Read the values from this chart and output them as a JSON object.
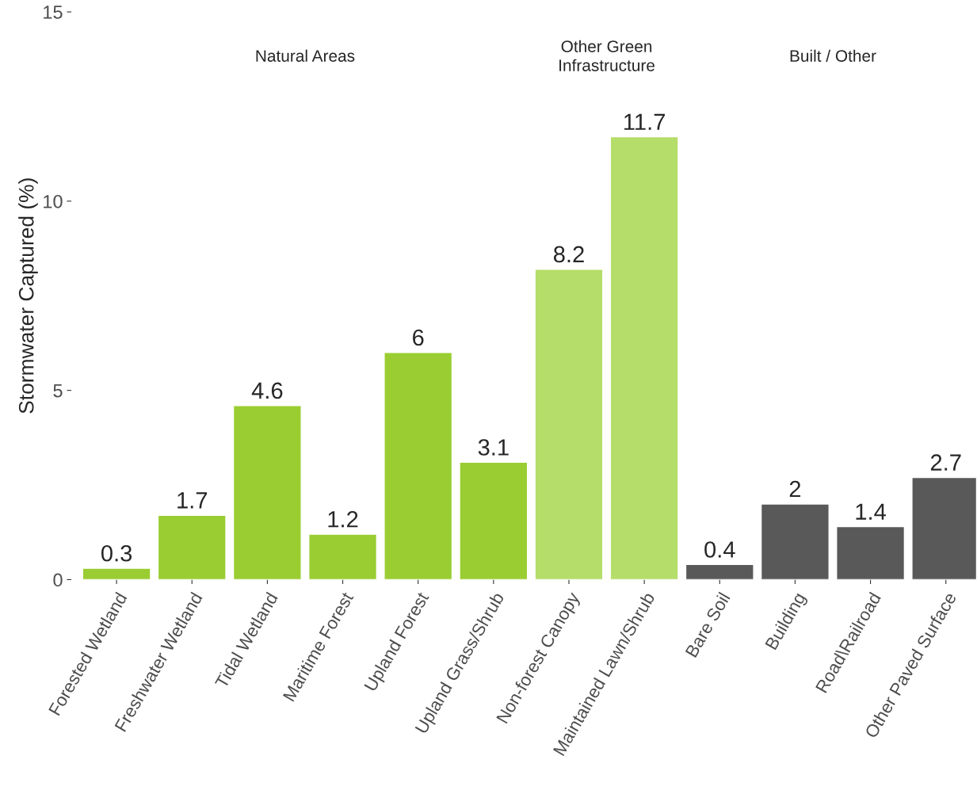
{
  "chart_data": {
    "type": "bar",
    "ylabel": "Stormwater Captured (%)",
    "categories": [
      "Forested Wetland",
      "Freshwater Wetland",
      "Tidal Wetland",
      "Maritime Forest",
      "Upland Forest",
      "Upland Grass/Shrub",
      "Non-forest Canopy",
      "Maintained Lawn/Shrub",
      "Bare Soil",
      "Building",
      "Road\\Railroad",
      "Other Paved Surface"
    ],
    "values": [
      0.3,
      1.7,
      4.6,
      1.2,
      6,
      3.1,
      8.2,
      11.7,
      0.4,
      2,
      1.4,
      2.7
    ],
    "colors": [
      "#9acd32",
      "#9acd32",
      "#9acd32",
      "#9acd32",
      "#9acd32",
      "#9acd32",
      "#b5dd6a",
      "#b5dd6a",
      "#595959",
      "#595959",
      "#595959",
      "#595959"
    ],
    "annotations": [
      "Natural Areas",
      "Other Green\nInfrastructure",
      "Built / Other"
    ],
    "ylim": [
      0,
      15
    ],
    "yticks": [
      0,
      5,
      10,
      15
    ],
    "data_labels": true,
    "grid": false,
    "legend": false
  }
}
